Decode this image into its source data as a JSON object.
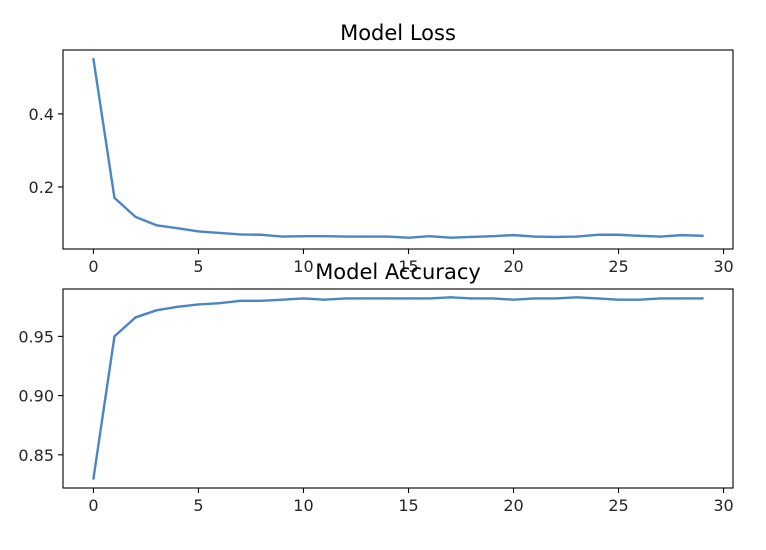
{
  "chart_data": [
    {
      "type": "line",
      "title": "Model Loss",
      "xlabel": "",
      "ylabel": "",
      "xlim": [
        -1.45,
        30.45
      ],
      "ylim": [
        0.03,
        0.575
      ],
      "xticks": [
        0,
        5,
        10,
        15,
        20,
        25,
        30
      ],
      "yticks": [
        0.2,
        0.4
      ],
      "xtick_labels": [
        "0",
        "5",
        "10",
        "15",
        "20",
        "25",
        "30"
      ],
      "ytick_labels": [
        "0.2",
        "0.4"
      ],
      "grid": false,
      "color": "#4a86c4",
      "series": [
        {
          "x": [
            0,
            1,
            2,
            3,
            4,
            5,
            6,
            7,
            8,
            9,
            10,
            11,
            12,
            13,
            14,
            15,
            16,
            17,
            18,
            19,
            20,
            21,
            22,
            23,
            24,
            25,
            26,
            27,
            28,
            29
          ],
          "values": [
            0.55,
            0.17,
            0.118,
            0.095,
            0.087,
            0.078,
            0.074,
            0.07,
            0.069,
            0.064,
            0.065,
            0.065,
            0.064,
            0.064,
            0.064,
            0.061,
            0.065,
            0.061,
            0.063,
            0.065,
            0.068,
            0.064,
            0.063,
            0.064,
            0.069,
            0.069,
            0.066,
            0.064,
            0.068,
            0.066
          ]
        }
      ]
    },
    {
      "type": "line",
      "title": "Model Accuracy",
      "xlabel": "",
      "ylabel": "",
      "xlim": [
        -1.45,
        30.45
      ],
      "ylim": [
        0.822,
        0.99
      ],
      "xticks": [
        0,
        5,
        10,
        15,
        20,
        25,
        30
      ],
      "yticks": [
        0.85,
        0.9,
        0.95
      ],
      "xtick_labels": [
        "0",
        "5",
        "10",
        "15",
        "20",
        "25",
        "30"
      ],
      "ytick_labels": [
        "0.85",
        "0.90",
        "0.95"
      ],
      "grid": false,
      "color": "#4a86c4",
      "series": [
        {
          "x": [
            0,
            1,
            2,
            3,
            4,
            5,
            6,
            7,
            8,
            9,
            10,
            11,
            12,
            13,
            14,
            15,
            16,
            17,
            18,
            19,
            20,
            21,
            22,
            23,
            24,
            25,
            26,
            27,
            28,
            29
          ],
          "values": [
            0.83,
            0.95,
            0.966,
            0.972,
            0.975,
            0.977,
            0.978,
            0.98,
            0.98,
            0.981,
            0.982,
            0.981,
            0.982,
            0.982,
            0.982,
            0.982,
            0.982,
            0.983,
            0.982,
            0.982,
            0.981,
            0.982,
            0.982,
            0.983,
            0.982,
            0.981,
            0.981,
            0.982,
            0.982,
            0.982
          ]
        }
      ]
    }
  ]
}
